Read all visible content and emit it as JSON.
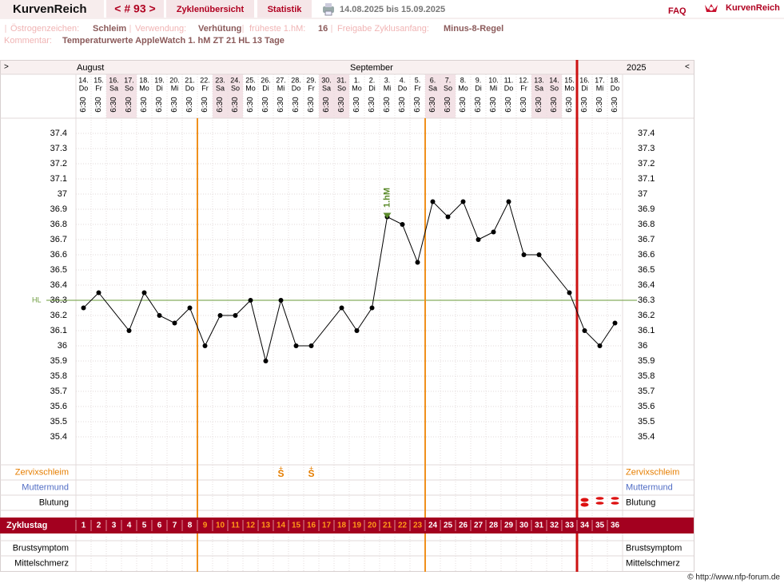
{
  "header": {
    "brand": "KurvenReich",
    "cycle_nav": "< # 93 >",
    "tabs": [
      "Zyklenübersicht",
      "Statistik"
    ],
    "date_range": "14.08.2025 bis 15.09.2025",
    "faq": "FAQ",
    "logo": "KurvenReich"
  },
  "info": {
    "fields": [
      {
        "label": "Östrogenzeichen:",
        "value": "Schleim"
      },
      {
        "label": "Verwendung:",
        "value": "Verhütung"
      },
      {
        "label": "früheste 1.hM:",
        "value": "16"
      },
      {
        "label": "Freigabe Zyklusanfang:",
        "value": "Minus-8-Regel"
      }
    ],
    "comment_label": "Kommentar:",
    "comment": "Temperaturwerte AppleWatch 1. hM ZT 21 HL 13 Tage"
  },
  "chart_data": {
    "type": "line",
    "nav_prev": ">",
    "nav_next": "<",
    "year": "2025",
    "months": [
      {
        "name": "August",
        "start": 1
      },
      {
        "name": "September",
        "start": 19
      }
    ],
    "categories": [
      "14.",
      "15.",
      "16.",
      "17.",
      "18.",
      "19.",
      "20.",
      "21.",
      "22.",
      "23.",
      "24.",
      "25.",
      "26.",
      "27.",
      "28.",
      "29.",
      "30.",
      "31.",
      "1.",
      "2.",
      "3.",
      "4.",
      "5.",
      "6.",
      "7.",
      "8.",
      "9.",
      "10.",
      "11.",
      "12.",
      "13.",
      "14.",
      "15.",
      "16.",
      "17.",
      "18."
    ],
    "weekdays": [
      "Do",
      "Fr",
      "Sa",
      "So",
      "Mo",
      "Di",
      "Mi",
      "Do",
      "Fr",
      "Sa",
      "So",
      "Mo",
      "Di",
      "Mi",
      "Do",
      "Fr",
      "Sa",
      "So",
      "Mo",
      "Di",
      "Mi",
      "Do",
      "Fr",
      "Sa",
      "So",
      "Mo",
      "Di",
      "Mi",
      "Do",
      "Fr",
      "Sa",
      "So",
      "Mo",
      "Di",
      "Mi",
      "Do"
    ],
    "times": [
      "6:30",
      "6:30",
      "6:30",
      "6:30",
      "6:30",
      "6:30",
      "6:30",
      "6:30",
      "6:30",
      "6:30",
      "6:30",
      "6:30",
      "6:30",
      "6:30",
      "6:30",
      "6:30",
      "6:30",
      "6:30",
      "6:30",
      "6:30",
      "6:30",
      "6:30",
      "6:30",
      "6:30",
      "6:30",
      "6:30",
      "6:30",
      "6:30",
      "6:30",
      "6:30",
      "6:30",
      "6:30",
      "6:30",
      "6:30",
      "6:30",
      "6:30"
    ],
    "weekend": [
      3,
      4,
      10,
      11,
      17,
      18,
      24,
      25,
      31,
      32
    ],
    "values": [
      36.25,
      36.35,
      null,
      36.1,
      36.35,
      36.2,
      36.15,
      36.25,
      36.0,
      36.2,
      36.2,
      36.3,
      35.9,
      36.3,
      36.0,
      36.0,
      null,
      36.25,
      36.1,
      36.25,
      36.85,
      36.8,
      36.55,
      36.95,
      36.85,
      36.95,
      36.7,
      36.75,
      36.95,
      36.6,
      36.6,
      null,
      36.35,
      36.1,
      36.0,
      36.15
    ],
    "color": "#000000",
    "ylim": [
      35.3,
      37.5
    ],
    "yticks": [
      35.4,
      35.5,
      35.6,
      35.7,
      35.8,
      35.9,
      36,
      36.1,
      36.2,
      36.3,
      36.4,
      36.5,
      36.6,
      36.7,
      36.8,
      36.9,
      37,
      37.1,
      37.2,
      37.3,
      37.4
    ],
    "grid": true,
    "coverline": {
      "label": "HL",
      "value": 36.3,
      "color": "#6a9a3a"
    },
    "annotation": {
      "text": "1.hM",
      "x": 21,
      "color": "#5a8a2a"
    },
    "vlines": [
      {
        "x": 8.5,
        "color": "#f0901c",
        "full": false
      },
      {
        "x": 23.5,
        "color": "#f0901c",
        "full": false
      },
      {
        "x": 33.5,
        "color": "#cc1111",
        "full": true
      }
    ],
    "rows_top": [
      {
        "label": "Zervixschleim",
        "color": "#e67e00"
      },
      {
        "label": "Muttermund",
        "color": "#4f6bc4"
      },
      {
        "label": "Blutung",
        "color": "#000000"
      }
    ],
    "mucus": [
      {
        "day": 14,
        "top": "±",
        "text": "S"
      },
      {
        "day": 16,
        "top": "±",
        "text": "S"
      }
    ],
    "bleeding": [
      {
        "day": 34,
        "level": "heavy"
      },
      {
        "day": 35,
        "level": "medium"
      },
      {
        "day": 36,
        "level": "medium"
      }
    ],
    "cycle_label": "Zyklustag",
    "cycle_days": [
      1,
      2,
      3,
      4,
      5,
      6,
      7,
      8,
      9,
      10,
      11,
      12,
      13,
      14,
      15,
      16,
      17,
      18,
      19,
      20,
      21,
      22,
      23,
      24,
      25,
      26,
      27,
      28,
      29,
      30,
      31,
      32,
      33,
      34,
      35,
      36
    ],
    "highlight_days": [
      9,
      23
    ],
    "rows_bottom": [
      {
        "label": "Brustsymptom"
      },
      {
        "label": "Mittelschmerz"
      }
    ]
  },
  "footer": "© http://www.nfp-forum.de"
}
